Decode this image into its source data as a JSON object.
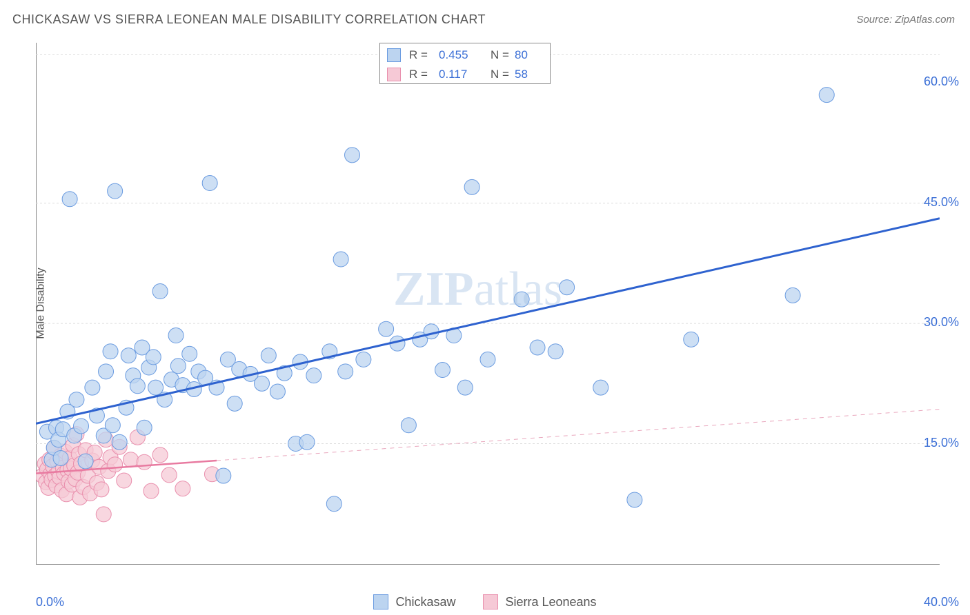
{
  "title": "CHICKASAW VS SIERRA LEONEAN MALE DISABILITY CORRELATION CHART",
  "source_label": "Source: ZipAtlas.com",
  "ylabel": "Male Disability",
  "watermark_bold": "ZIP",
  "watermark_rest": "atlas",
  "chart": {
    "type": "scatter",
    "background_color": "#ffffff",
    "grid_color": "#dcdcdc",
    "axis_color": "#888888",
    "xlim": [
      0,
      40
    ],
    "ylim": [
      0,
      65
    ],
    "y_gridlines": [
      15,
      30,
      45,
      63.5
    ],
    "y_tick_labels": [
      {
        "v": 15,
        "label": "15.0%",
        "color": "#3b6fd6"
      },
      {
        "v": 30,
        "label": "30.0%",
        "color": "#3b6fd6"
      },
      {
        "v": 45,
        "label": "45.0%",
        "color": "#3b6fd6"
      },
      {
        "v": 60,
        "label": "60.0%",
        "color": "#3b6fd6"
      }
    ],
    "x_ticks_at": [
      4,
      8,
      12,
      16,
      20,
      24,
      28,
      32,
      36
    ],
    "x_labels": [
      {
        "v": 0,
        "label": "0.0%",
        "color": "#3b6fd6",
        "align": "left"
      },
      {
        "v": 40,
        "label": "40.0%",
        "color": "#3b6fd6",
        "align": "right"
      }
    ],
    "marker_radius": 11,
    "marker_stroke_width": 1,
    "series": [
      {
        "name": "Chickasaw",
        "label": "Chickasaw",
        "fill": "#bcd4f0",
        "stroke": "#6a9be0",
        "trend": {
          "slope": 0.64,
          "intercept": 17.5,
          "x0": 0,
          "x1": 40,
          "color": "#2e62cf",
          "width": 3
        },
        "legend": {
          "R_label": "R =",
          "R": "0.455",
          "N_label": "N =",
          "N": "80",
          "value_color": "#3b6fd6"
        },
        "points": [
          [
            0.5,
            16.5
          ],
          [
            0.7,
            13
          ],
          [
            0.8,
            14.5
          ],
          [
            0.9,
            17
          ],
          [
            1.0,
            15.5
          ],
          [
            1.1,
            13.2
          ],
          [
            1.2,
            16.8
          ],
          [
            1.4,
            19
          ],
          [
            1.5,
            45.5
          ],
          [
            1.7,
            16
          ],
          [
            1.8,
            20.5
          ],
          [
            2.0,
            17.2
          ],
          [
            2.2,
            12.8
          ],
          [
            2.5,
            22
          ],
          [
            2.7,
            18.5
          ],
          [
            3.0,
            16
          ],
          [
            3.1,
            24
          ],
          [
            3.3,
            26.5
          ],
          [
            3.4,
            17.3
          ],
          [
            3.5,
            46.5
          ],
          [
            3.7,
            15.2
          ],
          [
            4.0,
            19.5
          ],
          [
            4.1,
            26
          ],
          [
            4.3,
            23.5
          ],
          [
            4.5,
            22.2
          ],
          [
            4.7,
            27
          ],
          [
            4.8,
            17
          ],
          [
            5.0,
            24.5
          ],
          [
            5.2,
            25.8
          ],
          [
            5.3,
            22
          ],
          [
            5.5,
            34
          ],
          [
            5.7,
            20.5
          ],
          [
            6.0,
            23
          ],
          [
            6.2,
            28.5
          ],
          [
            6.3,
            24.7
          ],
          [
            6.5,
            22.3
          ],
          [
            6.8,
            26.2
          ],
          [
            7.0,
            21.8
          ],
          [
            7.2,
            24
          ],
          [
            7.5,
            23.2
          ],
          [
            7.7,
            47.5
          ],
          [
            8.0,
            22
          ],
          [
            8.3,
            11
          ],
          [
            8.5,
            25.5
          ],
          [
            8.8,
            20
          ],
          [
            9.0,
            24.3
          ],
          [
            9.5,
            23.7
          ],
          [
            10.0,
            22.5
          ],
          [
            10.3,
            26
          ],
          [
            10.7,
            21.5
          ],
          [
            11.0,
            23.8
          ],
          [
            11.5,
            15
          ],
          [
            11.7,
            25.2
          ],
          [
            12.0,
            15.2
          ],
          [
            12.3,
            23.5
          ],
          [
            13.0,
            26.5
          ],
          [
            13.2,
            7.5
          ],
          [
            13.5,
            38
          ],
          [
            13.7,
            24
          ],
          [
            14.0,
            51
          ],
          [
            14.5,
            25.5
          ],
          [
            15.5,
            29.3
          ],
          [
            16.0,
            27.5
          ],
          [
            16.5,
            17.3
          ],
          [
            17.0,
            28
          ],
          [
            17.5,
            29
          ],
          [
            18.0,
            24.2
          ],
          [
            18.5,
            28.5
          ],
          [
            19.0,
            22
          ],
          [
            19.3,
            47
          ],
          [
            20.0,
            25.5
          ],
          [
            21.5,
            33
          ],
          [
            22.2,
            27
          ],
          [
            23.0,
            26.5
          ],
          [
            23.5,
            34.5
          ],
          [
            25.0,
            22
          ],
          [
            26.5,
            8
          ],
          [
            29.0,
            28
          ],
          [
            33.5,
            33.5
          ],
          [
            35.0,
            58.5
          ]
        ]
      },
      {
        "name": "Sierra Leoneans",
        "label": "Sierra Leoneans",
        "fill": "#f6c9d6",
        "stroke": "#e98fad",
        "trend": {
          "slope": 0.2,
          "intercept": 11.3,
          "x0": 0,
          "x1": 8,
          "color": "#e87aa0",
          "width": 2.5
        },
        "trend_extrapolate": {
          "x0": 8,
          "x1": 40,
          "color": "#e9a7bd",
          "width": 1,
          "dash": "6,6"
        },
        "legend": {
          "R_label": "R =",
          "R": "0.117",
          "N_label": "N =",
          "N": "58",
          "value_color": "#3b6fd6"
        },
        "points": [
          [
            0.3,
            11
          ],
          [
            0.4,
            12.5
          ],
          [
            0.45,
            10.2
          ],
          [
            0.5,
            11.8
          ],
          [
            0.55,
            9.5
          ],
          [
            0.6,
            13
          ],
          [
            0.65,
            11.2
          ],
          [
            0.7,
            10.5
          ],
          [
            0.75,
            12.2
          ],
          [
            0.8,
            14.5
          ],
          [
            0.85,
            11
          ],
          [
            0.9,
            9.8
          ],
          [
            0.95,
            12.8
          ],
          [
            1.0,
            11.5
          ],
          [
            1.05,
            10.8
          ],
          [
            1.1,
            13.5
          ],
          [
            1.15,
            9.2
          ],
          [
            1.2,
            12
          ],
          [
            1.25,
            11.3
          ],
          [
            1.3,
            14
          ],
          [
            1.35,
            8.7
          ],
          [
            1.4,
            11.7
          ],
          [
            1.45,
            10.3
          ],
          [
            1.5,
            13.2
          ],
          [
            1.55,
            11.9
          ],
          [
            1.6,
            9.9
          ],
          [
            1.65,
            14.8
          ],
          [
            1.7,
            12.3
          ],
          [
            1.75,
            10.6
          ],
          [
            1.8,
            16.2
          ],
          [
            1.85,
            11.4
          ],
          [
            1.9,
            13.7
          ],
          [
            1.95,
            8.3
          ],
          [
            2.0,
            12.5
          ],
          [
            2.1,
            9.6
          ],
          [
            2.2,
            14.2
          ],
          [
            2.3,
            11
          ],
          [
            2.4,
            8.8
          ],
          [
            2.5,
            12.9
          ],
          [
            2.6,
            13.9
          ],
          [
            2.7,
            10.1
          ],
          [
            2.8,
            12.1
          ],
          [
            2.9,
            9.3
          ],
          [
            3.0,
            6.2
          ],
          [
            3.1,
            15.5
          ],
          [
            3.2,
            11.6
          ],
          [
            3.3,
            13.3
          ],
          [
            3.5,
            12.4
          ],
          [
            3.7,
            14.6
          ],
          [
            3.9,
            10.4
          ],
          [
            4.2,
            13
          ],
          [
            4.5,
            15.8
          ],
          [
            4.8,
            12.7
          ],
          [
            5.1,
            9.1
          ],
          [
            5.5,
            13.6
          ],
          [
            5.9,
            11.1
          ],
          [
            6.5,
            9.4
          ],
          [
            7.8,
            11.2
          ]
        ]
      }
    ]
  }
}
